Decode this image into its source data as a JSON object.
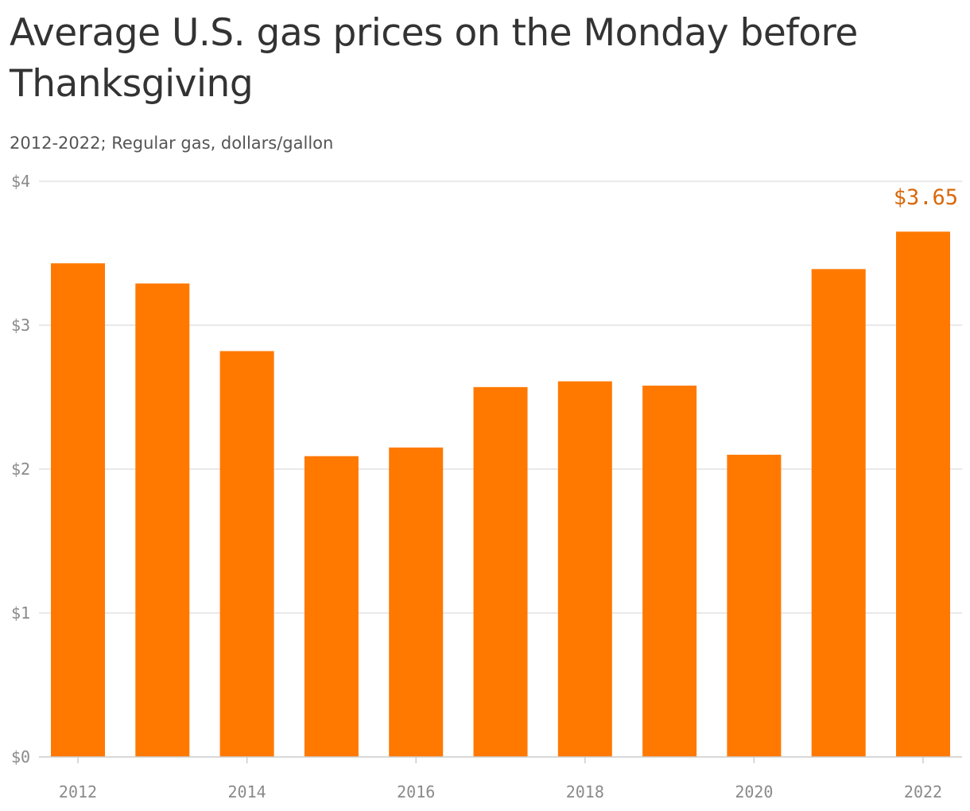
{
  "header": {
    "title": "Average U.S. gas prices on the Monday before Thanksgiving",
    "subtitle": "2012-2022; Regular gas, dollars/gallon"
  },
  "chart_data": {
    "type": "bar",
    "title": "Average U.S. gas prices on the Monday before Thanksgiving",
    "subtitle": "2012-2022; Regular gas, dollars/gallon",
    "xlabel": "",
    "ylabel": "",
    "categories": [
      "2012",
      "2013",
      "2014",
      "2015",
      "2016",
      "2017",
      "2018",
      "2019",
      "2020",
      "2021",
      "2022"
    ],
    "values": [
      3.43,
      3.29,
      2.82,
      2.09,
      2.15,
      2.57,
      2.61,
      2.58,
      2.1,
      3.39,
      3.65
    ],
    "ylim": [
      0,
      4
    ],
    "yticks": [
      0,
      1,
      2,
      3,
      4
    ],
    "ytick_labels": [
      "$0",
      "$1",
      "$2",
      "$3",
      "$4"
    ],
    "xtick_labels": [
      "2012",
      "2014",
      "2016",
      "2018",
      "2020",
      "2022"
    ],
    "annotations": [
      {
        "category": "2022",
        "text": "$3.65"
      }
    ],
    "grid": true,
    "legend": "none",
    "colors": {
      "bar": "#ff7900",
      "annotation": "#d9680a",
      "grid": "#e2e2e2",
      "axis": "#cccccc"
    }
  }
}
